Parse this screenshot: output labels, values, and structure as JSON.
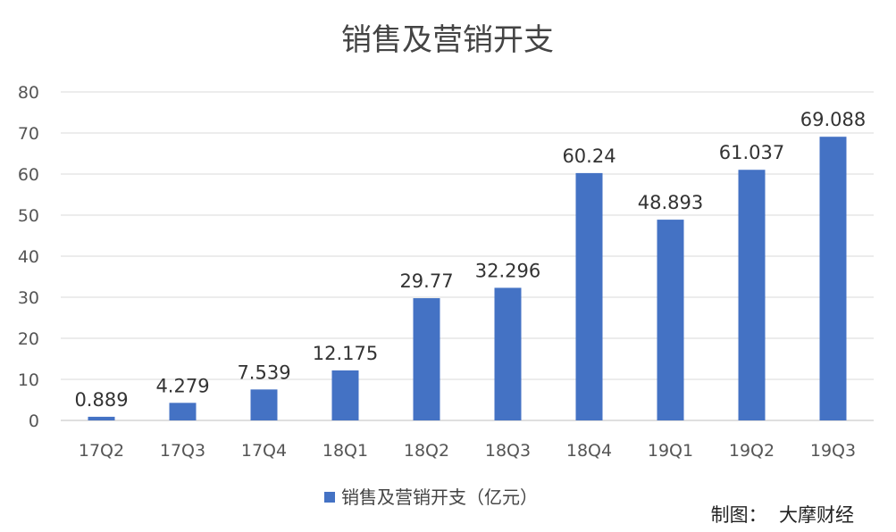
{
  "chart_data": {
    "type": "bar",
    "title": "销售及营销开支",
    "categories": [
      "17Q2",
      "17Q3",
      "17Q4",
      "18Q1",
      "18Q2",
      "18Q3",
      "18Q4",
      "19Q1",
      "19Q2",
      "19Q3"
    ],
    "series": [
      {
        "name": "销售及营销开支（亿元）",
        "values": [
          0.889,
          4.279,
          7.539,
          12.175,
          29.77,
          32.296,
          60.24,
          48.893,
          61.037,
          69.088
        ],
        "labels": [
          "0.889",
          "4.279",
          "7.539",
          "12.175",
          "29.77",
          "32.296",
          "60.24",
          "48.893",
          "61.037",
          "69.088"
        ]
      }
    ],
    "y_ticks": [
      "0",
      "10",
      "20",
      "30",
      "40",
      "50",
      "60",
      "70",
      "80"
    ],
    "ylim": [
      0,
      80
    ],
    "grid": true,
    "legend_position": "bottom",
    "bar_color": "#4472C4"
  },
  "credit": "制图：  大摩财经"
}
